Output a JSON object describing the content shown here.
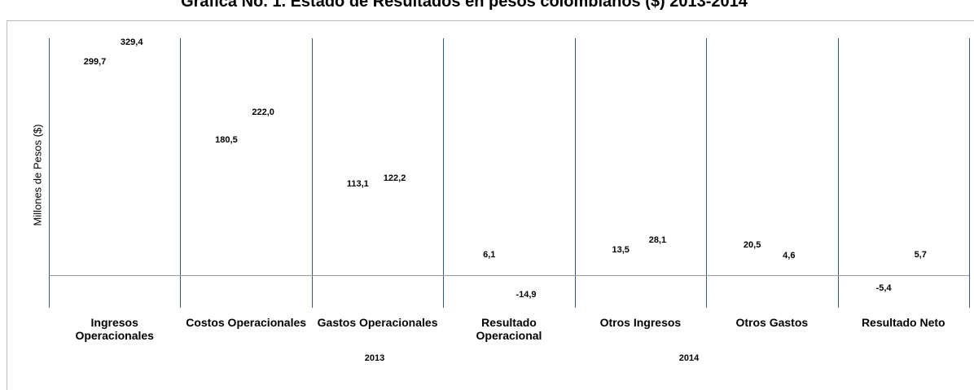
{
  "chart_data": {
    "type": "bar",
    "title": "Gráfica No. 1. Estado de Resultados en pesos colombianos ($) 2013-2014",
    "y_label": "Millones de Pesos ($)",
    "categories": [
      "Ingresos Operacionales",
      "Costos Operacionales",
      "Gastos Operacionales",
      "Resultado Operacional",
      "Otros Ingresos",
      "Otros Gastos",
      "Resultado Neto"
    ],
    "series": [
      {
        "name": "2013",
        "values": [
          299.7,
          180.5,
          113.1,
          6.1,
          13.5,
          20.5,
          -5.4
        ],
        "value_labels": [
          "299,7",
          "180,5",
          "113,1",
          "6,1",
          "13,5",
          "20,5",
          "-5,4"
        ]
      },
      {
        "name": "2014",
        "values": [
          329.4,
          222.0,
          122.2,
          -14.9,
          28.1,
          4.6,
          5.7
        ],
        "value_labels": [
          "329,4",
          "222,0",
          "122,2",
          "-14,9",
          "28,1",
          "4,6",
          "5,7"
        ]
      }
    ],
    "ylim": [
      -50,
      360
    ]
  }
}
